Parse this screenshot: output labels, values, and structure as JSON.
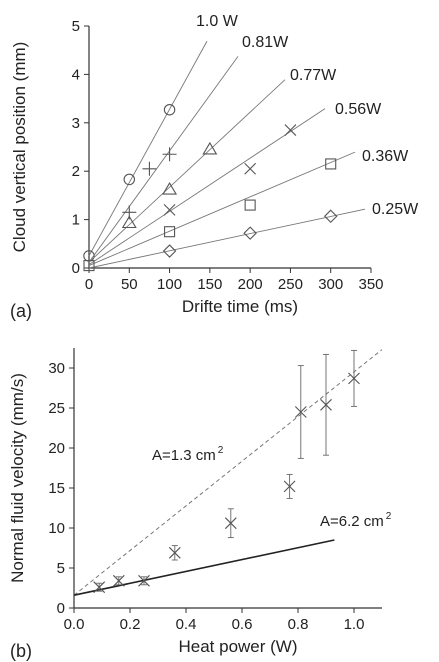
{
  "chart_data": [
    {
      "type": "scatter",
      "panel_label": "(a)",
      "title": "",
      "xlabel": "Drifte time (ms)",
      "ylabel": "Cloud vertical position (mm)",
      "xlim": [
        0,
        350
      ],
      "ylim": [
        0,
        5
      ],
      "xticks": [
        0,
        50,
        100,
        150,
        200,
        250,
        300,
        350
      ],
      "yticks": [
        0,
        1,
        2,
        3,
        4,
        5
      ],
      "grid": false,
      "fit_lines": true,
      "series": [
        {
          "name": "1.0 W",
          "marker": "circle",
          "points": [
            [
              0,
              0.25
            ],
            [
              50,
              1.83
            ],
            [
              100,
              3.27
            ]
          ],
          "fit": {
            "intercept": 0.25,
            "slope": 0.0303
          }
        },
        {
          "name": "0.81W",
          "marker": "plus",
          "points": [
            [
              50,
              1.15
            ],
            [
              75,
              2.05
            ],
            [
              100,
              2.35
            ]
          ],
          "fit": {
            "intercept": 0.12,
            "slope": 0.023
          }
        },
        {
          "name": "0.77W",
          "marker": "triangle",
          "points": [
            [
              50,
              0.93
            ],
            [
              100,
              1.62
            ],
            [
              150,
              2.45
            ]
          ],
          "fit": {
            "intercept": 0.12,
            "slope": 0.0155
          }
        },
        {
          "name": "0.56W",
          "marker": "x",
          "points": [
            [
              100,
              1.2
            ],
            [
              200,
              2.05
            ],
            [
              250,
              2.85
            ]
          ],
          "fit": {
            "intercept": 0.07,
            "slope": 0.011
          }
        },
        {
          "name": "0.36W",
          "marker": "square",
          "points": [
            [
              0,
              0.05
            ],
            [
              100,
              0.75
            ],
            [
              200,
              1.3
            ],
            [
              300,
              2.15
            ]
          ],
          "fit": {
            "intercept": 0.05,
            "slope": 0.0071
          }
        },
        {
          "name": "0.25W",
          "marker": "diamond",
          "points": [
            [
              100,
              0.35
            ],
            [
              200,
              0.72
            ],
            [
              300,
              1.07
            ]
          ],
          "fit": {
            "intercept": 0.0,
            "slope": 0.00355
          }
        }
      ]
    },
    {
      "type": "scatter",
      "panel_label": "(b)",
      "title": "",
      "xlabel": "Heat power (W)",
      "ylabel": "Normal fluid velocity (mm/s)",
      "xlim": [
        0.0,
        1.1
      ],
      "ylim": [
        0,
        32.5
      ],
      "xticks": [
        "0.0",
        "0.2",
        "0.4",
        "0.6",
        "0.8",
        "1.0"
      ],
      "yticks": [
        0,
        5,
        10,
        15,
        20,
        25,
        30
      ],
      "grid": false,
      "marker": "x",
      "points": [
        {
          "x": 0.09,
          "y": 2.6,
          "err": 0.5
        },
        {
          "x": 0.16,
          "y": 3.4,
          "err": 0.5
        },
        {
          "x": 0.25,
          "y": 3.4,
          "err": 0.5
        },
        {
          "x": 0.36,
          "y": 6.9,
          "err": 0.9
        },
        {
          "x": 0.56,
          "y": 10.6,
          "err": 1.8
        },
        {
          "x": 0.77,
          "y": 15.2,
          "err": 1.5
        },
        {
          "x": 0.81,
          "y": 24.5,
          "err": 5.8
        },
        {
          "x": 0.9,
          "y": 25.4,
          "err": 6.3
        },
        {
          "x": 1.0,
          "y": 28.7,
          "err": 3.5
        }
      ],
      "lines": [
        {
          "label_text": "A=1.3 cm",
          "label_sup": "2",
          "style": "dashed",
          "x": [
            0.0,
            1.1
          ],
          "y": [
            1.6,
            32.3
          ]
        },
        {
          "label_text": "A=6.2 cm",
          "label_sup": "2",
          "style": "solid",
          "x": [
            0.0,
            0.93
          ],
          "y": [
            1.6,
            8.5
          ]
        }
      ]
    }
  ]
}
